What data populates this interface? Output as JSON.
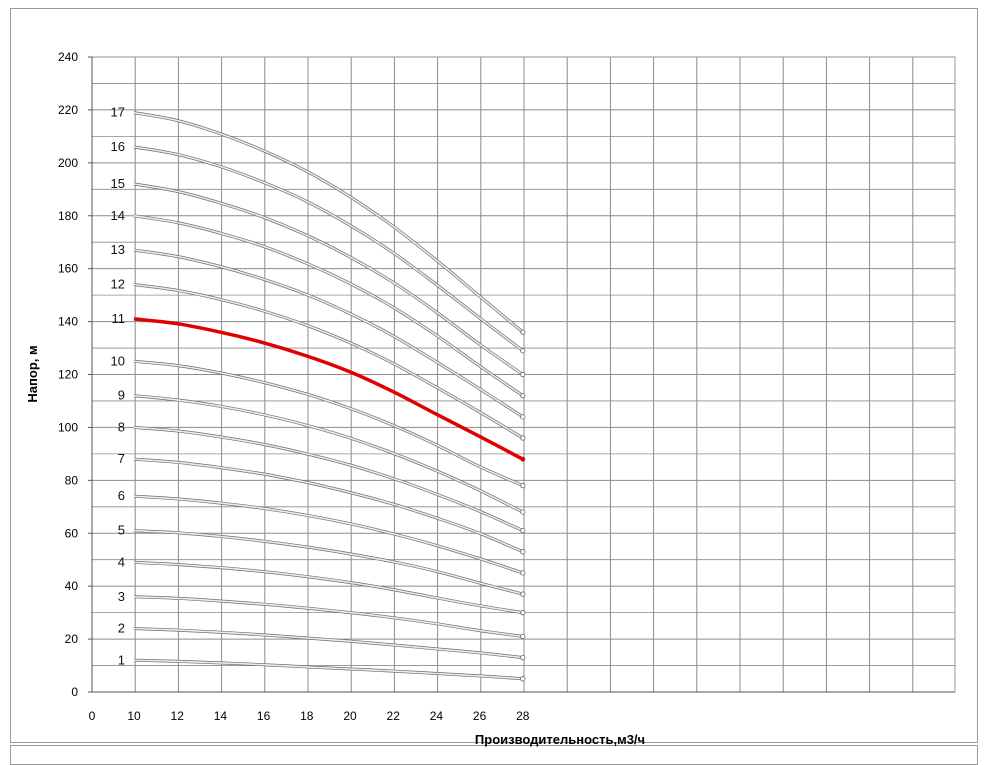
{
  "chart_data": {
    "type": "line",
    "title": "",
    "xlabel": "Производительность,м3/ч",
    "ylabel": "Напор, м",
    "xlim": [
      0,
      28
    ],
    "ylim": [
      0,
      240
    ],
    "x_ticks": [
      0,
      10,
      12,
      14,
      16,
      18,
      20,
      22,
      24,
      26,
      28
    ],
    "y_ticks": [
      0,
      20,
      40,
      60,
      80,
      100,
      120,
      140,
      160,
      180,
      200,
      220,
      240
    ],
    "grid": true,
    "legend": "none",
    "highlight_color": "#e00000",
    "curve_color": "#a8a8a8",
    "x": [
      10,
      12,
      14,
      16,
      18,
      20,
      22,
      24,
      26,
      28
    ],
    "series": [
      {
        "label": "1",
        "values": [
          12,
          11.6,
          11,
          10.3,
          9.5,
          8.7,
          7.9,
          7,
          6.1,
          5
        ]
      },
      {
        "label": "2",
        "values": [
          24,
          23.4,
          22.6,
          21.6,
          20.4,
          19.2,
          17.8,
          16.3,
          14.8,
          13
        ]
      },
      {
        "label": "3",
        "values": [
          36,
          35.4,
          34.4,
          33.2,
          31.7,
          30,
          28.1,
          25.8,
          23.2,
          21
        ]
      },
      {
        "label": "4",
        "values": [
          49,
          48.2,
          47,
          45.5,
          43.6,
          41.4,
          38.7,
          35.6,
          32.6,
          30
        ]
      },
      {
        "label": "5",
        "values": [
          61,
          60.2,
          58.8,
          57,
          54.8,
          52.2,
          49.2,
          45.6,
          41.2,
          37
        ]
      },
      {
        "label": "6",
        "values": [
          74,
          73,
          71.4,
          69.4,
          66.8,
          63.6,
          59.8,
          55.4,
          50.4,
          45
        ]
      },
      {
        "label": "7",
        "values": [
          88,
          86.8,
          84.8,
          82.4,
          79.2,
          75.4,
          71,
          65.8,
          60,
          53
        ]
      },
      {
        "label": "8",
        "values": [
          100,
          98.7,
          96.4,
          93.6,
          90,
          85.8,
          80.7,
          74.8,
          68.3,
          61
        ]
      },
      {
        "label": "9",
        "values": [
          112,
          110.4,
          108,
          104.8,
          100.8,
          96,
          90.2,
          83.6,
          76.2,
          68
        ]
      },
      {
        "label": "10",
        "values": [
          125,
          123.4,
          120.6,
          117,
          112.6,
          107.2,
          100.8,
          93.4,
          85.2,
          78
        ]
      },
      {
        "label": "11",
        "values": [
          141,
          139.2,
          136,
          132,
          127,
          121,
          113.5,
          105,
          96.6,
          88
        ],
        "highlight": true
      },
      {
        "label": "12",
        "values": [
          154,
          151.8,
          148.4,
          144,
          138.6,
          132,
          124.2,
          115.2,
          105.8,
          96
        ]
      },
      {
        "label": "13",
        "values": [
          167,
          164.6,
          160.8,
          156,
          150.2,
          143,
          134.6,
          124.8,
          114.6,
          104
        ]
      },
      {
        "label": "14",
        "values": [
          180,
          177.4,
          173.4,
          168.4,
          162,
          154.4,
          145.4,
          134.8,
          123.2,
          112
        ]
      },
      {
        "label": "15",
        "values": [
          192,
          189.2,
          184.8,
          179.4,
          172.6,
          164.4,
          154.8,
          143.6,
          131.4,
          120
        ]
      },
      {
        "label": "16",
        "values": [
          206,
          203.2,
          198.6,
          192.6,
          185.4,
          176.4,
          166,
          154,
          141.4,
          129
        ]
      },
      {
        "label": "17",
        "values": [
          219,
          216,
          211,
          204.6,
          196.8,
          187.2,
          176,
          163.2,
          149.6,
          136
        ]
      }
    ]
  }
}
